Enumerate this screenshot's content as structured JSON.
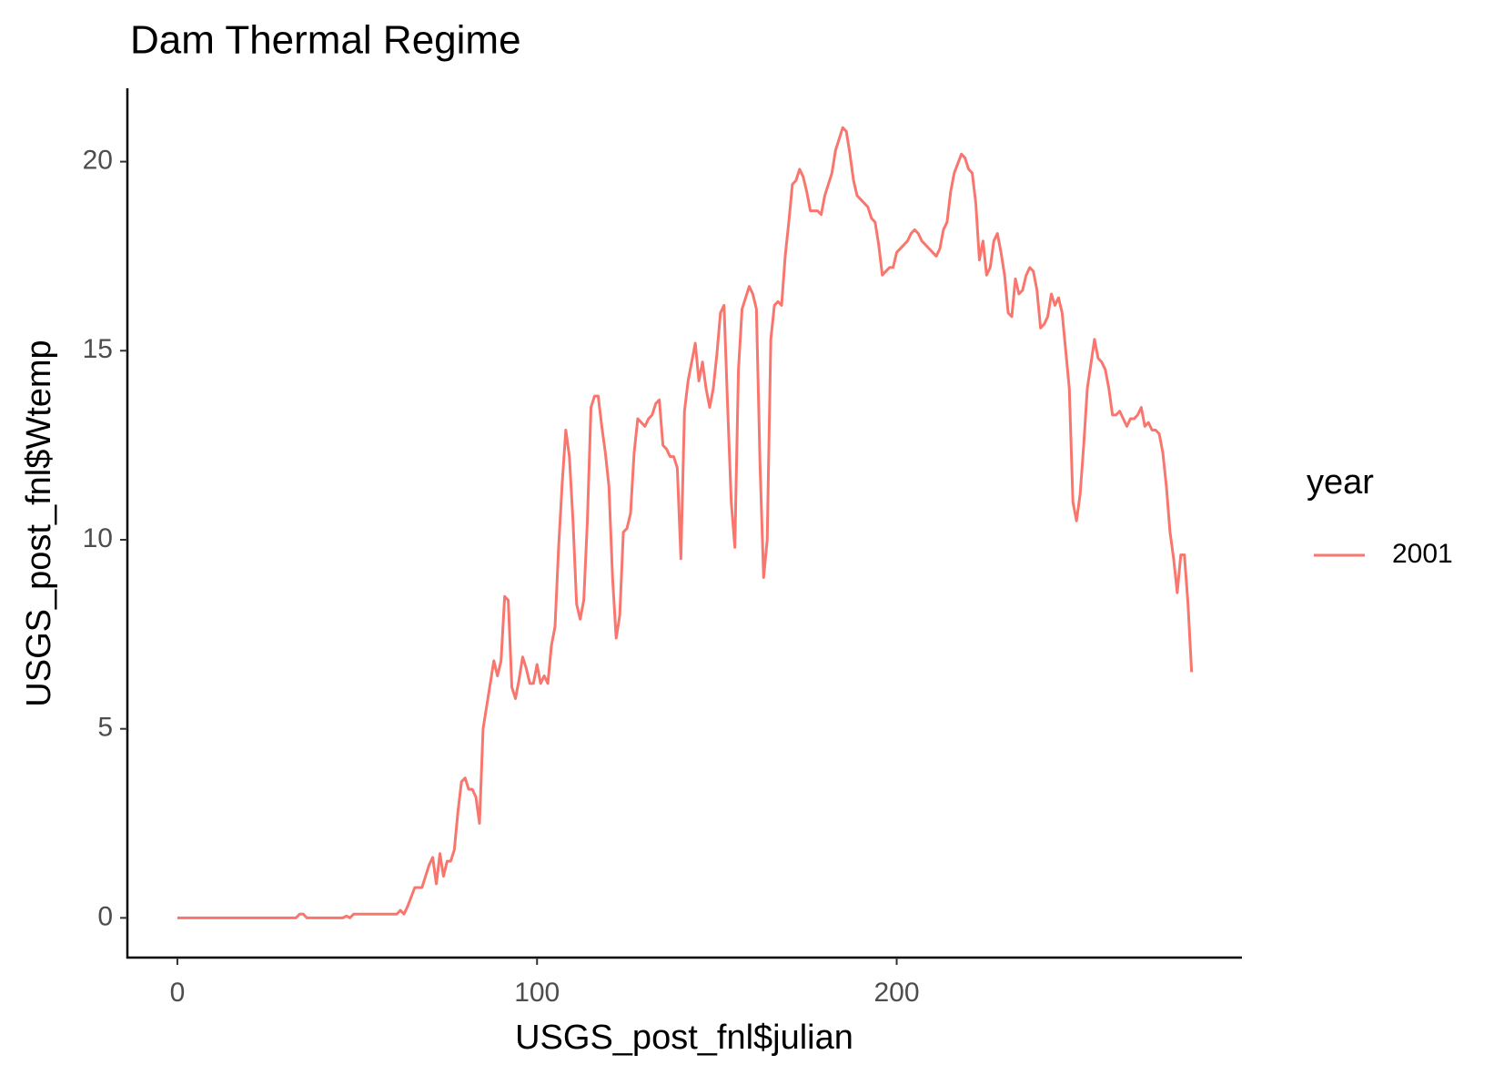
{
  "chart_data": {
    "type": "line",
    "title": "Dam Thermal Regime",
    "x_label": "USGS_post_fnl$julian",
    "y_label": "USGS_post_fnl$Wtemp",
    "legend_title": "year",
    "x": [
      0,
      33,
      34,
      35,
      36,
      46,
      47,
      48,
      49,
      61,
      62,
      63,
      64,
      66,
      68,
      70,
      71,
      72,
      73,
      74,
      75,
      76,
      77,
      78,
      79,
      80,
      81,
      82,
      83,
      84,
      85,
      86,
      87,
      88,
      89,
      90,
      91,
      92,
      93,
      94,
      95,
      96,
      97,
      98,
      99,
      100,
      101,
      102,
      103,
      104,
      105,
      106,
      107,
      108,
      109,
      110,
      111,
      112,
      113,
      114,
      115,
      116,
      117,
      118,
      119,
      120,
      121,
      122,
      123,
      124,
      125,
      126,
      127,
      128,
      129,
      130,
      131,
      132,
      133,
      134,
      135,
      136,
      137,
      138,
      139,
      140,
      141,
      142,
      144,
      145,
      146,
      147,
      148,
      149,
      150,
      151,
      152,
      153,
      154,
      155,
      156,
      157,
      159,
      160,
      161,
      162,
      163,
      164,
      165,
      166,
      167,
      168,
      169,
      170,
      171,
      172,
      173,
      174,
      175,
      176,
      177,
      178,
      179,
      180,
      182,
      183,
      185,
      186,
      187,
      188,
      189,
      191,
      192,
      193,
      194,
      195,
      196,
      197,
      198,
      199,
      200,
      202,
      203,
      204,
      205,
      206,
      207,
      208,
      209,
      210,
      211,
      212,
      213,
      214,
      215,
      216,
      218,
      219,
      220,
      221,
      222,
      223,
      224,
      225,
      226,
      227,
      228,
      229,
      230,
      231,
      232,
      233,
      234,
      235,
      236,
      237,
      238,
      239,
      240,
      241,
      242,
      243,
      244,
      245,
      246,
      248,
      249,
      250,
      251,
      252,
      253,
      255,
      256,
      257,
      258,
      259,
      260,
      261,
      262,
      263,
      264,
      265,
      266,
      267,
      268,
      269,
      270,
      271,
      272,
      273,
      274,
      275,
      276,
      277,
      278,
      279,
      280,
      281,
      282
    ],
    "series": [
      {
        "name": "2001",
        "color": "#F8766D",
        "values": [
          0,
          0,
          0.1,
          0.1,
          0,
          0,
          0.05,
          0,
          0.1,
          0.1,
          0.2,
          0.1,
          0.3,
          0.8,
          0.8,
          1.4,
          1.6,
          0.9,
          1.7,
          1.1,
          1.5,
          1.5,
          1.8,
          2.8,
          3.6,
          3.7,
          3.4,
          3.4,
          3.2,
          2.5,
          5.0,
          5.6,
          6.2,
          6.8,
          6.4,
          6.8,
          8.5,
          8.4,
          6.1,
          5.8,
          6.3,
          6.9,
          6.6,
          6.2,
          6.2,
          6.7,
          6.2,
          6.4,
          6.2,
          7.2,
          7.7,
          9.8,
          11.5,
          12.9,
          12.2,
          10.5,
          8.3,
          7.9,
          8.4,
          10.5,
          13.5,
          13.8,
          13.8,
          13.0,
          12.3,
          11.4,
          9.0,
          7.4,
          8.0,
          10.2,
          10.3,
          10.7,
          12.3,
          13.2,
          13.1,
          13.0,
          13.2,
          13.3,
          13.6,
          13.7,
          12.5,
          12.4,
          12.2,
          12.2,
          11.9,
          9.5,
          13.4,
          14.2,
          15.2,
          14.2,
          14.7,
          14.0,
          13.5,
          14.0,
          14.9,
          16.0,
          16.2,
          13.5,
          11.0,
          9.8,
          14.5,
          16.1,
          16.7,
          16.5,
          16.1,
          12.0,
          9.0,
          10.0,
          15.3,
          16.2,
          16.3,
          16.2,
          17.5,
          18.4,
          19.4,
          19.5,
          19.8,
          19.6,
          19.2,
          18.7,
          18.7,
          18.7,
          18.6,
          19.1,
          19.7,
          20.3,
          20.9,
          20.8,
          20.2,
          19.5,
          19.1,
          18.9,
          18.8,
          18.5,
          18.4,
          17.8,
          17.0,
          17.1,
          17.2,
          17.2,
          17.6,
          17.8,
          17.9,
          18.1,
          18.2,
          18.1,
          17.9,
          17.8,
          17.7,
          17.6,
          17.5,
          17.7,
          18.2,
          18.4,
          19.2,
          19.7,
          20.2,
          20.1,
          19.8,
          19.7,
          18.9,
          17.4,
          17.9,
          17.0,
          17.2,
          17.9,
          18.1,
          17.6,
          17.0,
          16.0,
          15.9,
          16.9,
          16.5,
          16.6,
          17.0,
          17.2,
          17.1,
          16.6,
          15.6,
          15.7,
          15.9,
          16.5,
          16.2,
          16.4,
          16.0,
          14.0,
          11.0,
          10.5,
          11.2,
          12.5,
          14.0,
          15.3,
          14.8,
          14.7,
          14.5,
          14.0,
          13.3,
          13.3,
          13.4,
          13.2,
          13.0,
          13.2,
          13.2,
          13.3,
          13.5,
          13.0,
          13.1,
          12.9,
          12.9,
          12.8,
          12.3,
          11.4,
          10.2,
          9.5,
          8.6,
          9.6,
          9.6,
          8.3,
          6.5
        ]
      }
    ],
    "xlim": [
      -13.9,
      296
    ],
    "ylim": [
      -1.05,
      21.94
    ],
    "xticks": [
      0,
      100,
      200
    ],
    "yticks": [
      0,
      5,
      10,
      15,
      20
    ]
  }
}
